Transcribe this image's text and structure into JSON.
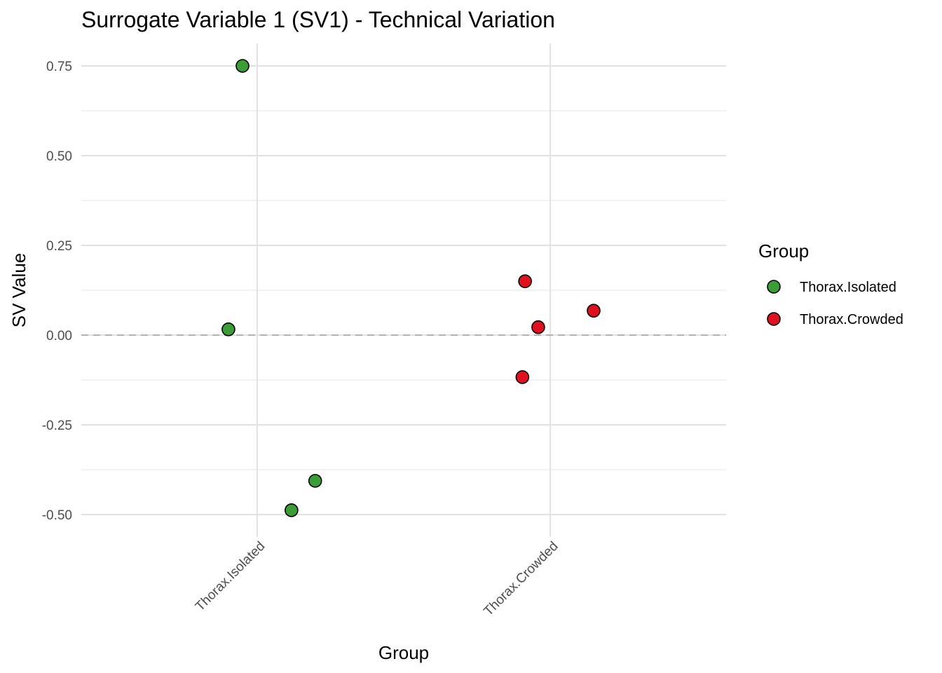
{
  "chart_data": {
    "type": "scatter",
    "title": "Surrogate Variable 1 (SV1) - Technical Variation",
    "xlabel": "Group",
    "ylabel": "SV Value",
    "categories": [
      "Thorax.Isolated",
      "Thorax.Crowded"
    ],
    "ylim": [
      -0.5625,
      0.8125
    ],
    "yticks": [
      0.75,
      0.5,
      0.25,
      0,
      -0.25,
      -0.5
    ],
    "ytick_labels": [
      "0.75",
      "0.50",
      "0.25",
      "0.00",
      "-0.25",
      "-0.50"
    ],
    "grid": true,
    "reference_line": {
      "y": 0,
      "style": "dashed"
    },
    "legend": {
      "title": "Group",
      "placement": "right"
    },
    "series": [
      {
        "name": "Thorax.Isolated",
        "color": "#3a9e36",
        "category": "Thorax.Isolated",
        "jitter": [
          -0.05,
          -0.098,
          0.198,
          0.117
        ],
        "values": [
          0.75,
          0.016,
          -0.406,
          -0.488
        ]
      },
      {
        "name": "Thorax.Crowded",
        "color": "#e0101e",
        "category": "Thorax.Crowded",
        "jitter": [
          -0.086,
          -0.041,
          0.148,
          -0.095
        ],
        "values": [
          0.15,
          0.022,
          0.068,
          -0.117
        ]
      }
    ]
  }
}
